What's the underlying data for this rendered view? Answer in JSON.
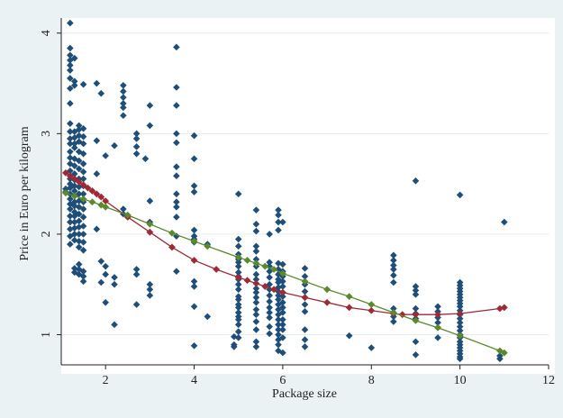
{
  "chart_data": {
    "type": "scatter",
    "title": "",
    "xlabel": "Package size",
    "ylabel": "Price in Euro per kilogram",
    "xlim": [
      1,
      12
    ],
    "ylim": [
      0.7,
      4.15
    ],
    "x_ticks": [
      2,
      4,
      6,
      8,
      10,
      12
    ],
    "y_ticks": [
      1,
      2,
      3,
      4
    ],
    "grid": true,
    "legend": "none",
    "colors": {
      "plot_background": "#ffffff",
      "outer_background": "#eaf2f3",
      "points": "#1f4e79",
      "fit_red": "#9e2a36",
      "fit_green": "#5a8a2c",
      "grid": "#e6ecec"
    },
    "series": [
      {
        "kind": "points",
        "color": "#1f4e79",
        "x": [
          1.2,
          1.2,
          1.2,
          1.2,
          1.2,
          1.2,
          1.2,
          1.2,
          1.2,
          1.2,
          1.2,
          1.2,
          1.2,
          1.2,
          1.2,
          1.2,
          1.2,
          1.2,
          1.2,
          1.2,
          1.2,
          1.2,
          1.2,
          1.2,
          1.2,
          1.2,
          1.2,
          1.2,
          1.2,
          1.2,
          1.3,
          1.3,
          1.3,
          1.3,
          1.3,
          1.3,
          1.3,
          1.3,
          1.3,
          1.3,
          1.3,
          1.3,
          1.3,
          1.3,
          1.3,
          1.3,
          1.3,
          1.3,
          1.3,
          1.3,
          1.3,
          1.3,
          1.3,
          1.3,
          1.4,
          1.4,
          1.4,
          1.4,
          1.4,
          1.4,
          1.4,
          1.4,
          1.4,
          1.4,
          1.4,
          1.4,
          1.4,
          1.4,
          1.4,
          1.4,
          1.4,
          1.4,
          1.4,
          1.4,
          1.4,
          1.5,
          1.5,
          1.5,
          1.5,
          1.5,
          1.5,
          1.5,
          1.5,
          1.5,
          1.5,
          1.5,
          1.5,
          1.5,
          1.5,
          1.5,
          1.5,
          1.5,
          1.5,
          1.5,
          1.5,
          1.1,
          1.1,
          1.8,
          1.8,
          1.8,
          1.8,
          1.9,
          1.9,
          1.9,
          2.0,
          2.0,
          2.0,
          2.0,
          2.2,
          2.2,
          2.2,
          2.2,
          2.4,
          2.4,
          2.4,
          2.4,
          2.4,
          2.4,
          2.4,
          2.4,
          2.5,
          2.7,
          2.7,
          2.7,
          2.7,
          2.7,
          2.7,
          2.7,
          2.9,
          3.0,
          3.0,
          3.0,
          3.0,
          3.0,
          3.0,
          3.0,
          3.6,
          3.6,
          3.6,
          3.6,
          3.6,
          3.6,
          3.6,
          3.6,
          3.6,
          3.6,
          3.6,
          3.6,
          3.6,
          4.0,
          4.0,
          4.0,
          4.0,
          4.0,
          4.0,
          4.0,
          4.0,
          4.0,
          4.0,
          4.0,
          4.0,
          4.3,
          4.3,
          4.9,
          4.9,
          4.9,
          5.0,
          5.0,
          5.0,
          5.0,
          5.0,
          5.0,
          5.0,
          5.0,
          5.0,
          5.0,
          5.0,
          5.0,
          5.0,
          5.0,
          5.0,
          5.0,
          5.0,
          5.0,
          5.0,
          5.0,
          5.0,
          5.0,
          5.4,
          5.4,
          5.4,
          5.4,
          5.4,
          5.4,
          5.4,
          5.4,
          5.4,
          5.4,
          5.4,
          5.4,
          5.4,
          5.4,
          5.4,
          5.4,
          5.4,
          5.4,
          5.4,
          5.7,
          5.7,
          5.7,
          5.7,
          5.7,
          5.7,
          5.7,
          5.7,
          5.7,
          5.7,
          5.7,
          5.7,
          5.7,
          5.7,
          5.9,
          5.9,
          5.9,
          5.9,
          5.9,
          5.9,
          5.9,
          5.9,
          5.9,
          5.9,
          5.9,
          5.9,
          5.9,
          5.9,
          5.9,
          5.9,
          5.9,
          5.9,
          5.9,
          5.9,
          5.9,
          5.9,
          5.9,
          6.0,
          6.0,
          6.0,
          6.0,
          6.0,
          6.0,
          6.0,
          6.0,
          6.0,
          6.0,
          6.0,
          6.0,
          6.0,
          6.0,
          6.0,
          6.0,
          6.5,
          6.5,
          6.5,
          6.5,
          6.5,
          6.5,
          6.5,
          6.5,
          6.5,
          6.5,
          7.5,
          8.0,
          8.5,
          8.5,
          8.5,
          8.5,
          8.5,
          8.5,
          8.5,
          8.5,
          8.5,
          8.5,
          9.0,
          9.0,
          9.0,
          9.0,
          9.0,
          9.0,
          9.0,
          9.0,
          9.0,
          9.5,
          9.5,
          9.5,
          9.5,
          9.5,
          9.5,
          10.0,
          10.0,
          10.0,
          10.0,
          10.0,
          10.0,
          10.0,
          10.0,
          10.0,
          10.0,
          10.0,
          10.0,
          10.0,
          10.0,
          10.0,
          10.0,
          10.0,
          10.0,
          10.0,
          10.0,
          10.0,
          10.0,
          10.0,
          10.0,
          10.0,
          10.9,
          10.9,
          11.0
        ],
        "y": [
          4.1,
          3.85,
          3.78,
          3.73,
          3.68,
          3.63,
          3.55,
          3.45,
          3.3,
          3.1,
          3.02,
          2.95,
          2.9,
          2.82,
          2.76,
          2.7,
          2.63,
          2.58,
          2.55,
          2.5,
          2.46,
          2.4,
          2.35,
          2.3,
          2.25,
          2.18,
          2.12,
          2.05,
          1.98,
          1.9,
          3.75,
          3.52,
          3.48,
          3.02,
          2.96,
          2.9,
          2.86,
          2.75,
          2.68,
          2.6,
          2.54,
          2.48,
          2.43,
          2.38,
          2.32,
          2.28,
          2.22,
          2.18,
          2.12,
          2.06,
          2.0,
          1.94,
          1.66,
          1.62,
          3.08,
          3.04,
          2.98,
          2.92,
          2.82,
          2.73,
          2.65,
          2.55,
          2.47,
          2.4,
          2.33,
          2.27,
          2.2,
          2.13,
          2.07,
          2.0,
          1.93,
          1.87,
          1.7,
          1.65,
          1.6,
          3.49,
          3.05,
          2.97,
          2.9,
          2.8,
          2.7,
          2.62,
          2.55,
          2.48,
          2.4,
          2.32,
          2.25,
          2.17,
          2.08,
          2.0,
          1.92,
          1.84,
          1.63,
          1.58,
          1.53,
          2.45,
          2.42,
          3.5,
          2.93,
          2.6,
          2.05,
          3.4,
          1.73,
          1.52,
          2.78,
          1.68,
          1.32,
          1.6,
          2.88,
          1.57,
          1.5,
          1.1,
          3.48,
          3.42,
          3.36,
          3.3,
          3.26,
          3.18,
          2.25,
          2.2,
          2.18,
          3.0,
          2.95,
          2.87,
          2.8,
          1.65,
          1.6,
          1.3,
          2.75,
          3.28,
          3.08,
          2.33,
          2.12,
          1.5,
          1.45,
          1.39,
          3.86,
          3.46,
          3.28,
          3.0,
          2.91,
          2.67,
          2.58,
          2.4,
          2.32,
          2.27,
          2.17,
          1.98,
          1.63,
          2.98,
          2.75,
          2.48,
          2.42,
          2.04,
          1.98,
          1.95,
          1.92,
          1.53,
          1.48,
          1.28,
          0.89,
          1.9,
          1.18,
          0.98,
          0.9,
          0.88,
          2.4,
          1.95,
          1.88,
          1.8,
          1.75,
          1.72,
          1.68,
          1.62,
          1.58,
          1.55,
          1.5,
          1.45,
          1.38,
          1.35,
          1.3,
          1.27,
          1.22,
          1.18,
          1.15,
          1.1,
          1.03,
          0.97,
          2.24,
          2.1,
          2.03,
          1.88,
          1.83,
          1.75,
          1.68,
          1.6,
          1.55,
          1.46,
          1.42,
          1.37,
          1.32,
          1.25,
          1.2,
          1.13,
          1.05,
          0.93,
          0.88,
          2.0,
          1.72,
          1.68,
          1.63,
          1.57,
          1.5,
          1.45,
          1.39,
          1.33,
          1.27,
          1.22,
          1.17,
          1.08,
          1.01,
          2.24,
          2.19,
          2.12,
          2.04,
          1.71,
          1.65,
          1.6,
          1.55,
          1.52,
          1.47,
          1.43,
          1.39,
          1.35,
          1.3,
          1.25,
          1.2,
          1.15,
          1.1,
          1.05,
          1.0,
          0.95,
          0.9,
          0.84,
          2.12,
          1.7,
          1.63,
          1.58,
          1.53,
          1.48,
          1.42,
          1.38,
          1.32,
          1.27,
          1.22,
          1.15,
          1.1,
          1.05,
          0.97,
          0.82,
          1.66,
          1.58,
          1.5,
          1.43,
          1.37,
          1.3,
          1.23,
          1.05,
          0.95,
          0.88,
          0.99,
          0.87,
          1.79,
          1.74,
          1.69,
          1.65,
          1.59,
          1.52,
          1.26,
          1.22,
          1.18,
          1.13,
          2.53,
          1.48,
          1.44,
          1.4,
          1.26,
          1.21,
          1.16,
          0.93,
          0.8,
          1.28,
          1.23,
          1.17,
          1.12,
          1.07,
          0.97,
          2.39,
          1.52,
          1.49,
          1.46,
          1.43,
          1.4,
          1.37,
          1.34,
          1.31,
          1.28,
          1.24,
          1.2,
          1.16,
          1.12,
          1.08,
          1.04,
          1.0,
          0.97,
          0.93,
          0.9,
          0.87,
          0.84,
          0.81,
          0.78,
          0.76,
          0.79,
          0.76,
          2.12
        ]
      },
      {
        "kind": "line",
        "color": "#9e2a36",
        "x": [
          1.1,
          1.2,
          1.3,
          1.4,
          1.5,
          1.6,
          1.7,
          1.8,
          1.9,
          2.0,
          2.5,
          3.0,
          3.5,
          4.0,
          4.5,
          5.0,
          5.2,
          5.4,
          5.6,
          5.8,
          6.0,
          6.5,
          7.0,
          7.5,
          8.0,
          8.5,
          8.7,
          9.0,
          9.5,
          10.0,
          10.9,
          11.0
        ],
        "y": [
          2.61,
          2.58,
          2.55,
          2.52,
          2.49,
          2.46,
          2.43,
          2.4,
          2.37,
          2.33,
          2.17,
          2.02,
          1.87,
          1.74,
          1.65,
          1.57,
          1.54,
          1.51,
          1.48,
          1.45,
          1.42,
          1.37,
          1.32,
          1.27,
          1.24,
          1.21,
          1.2,
          1.2,
          1.2,
          1.21,
          1.26,
          1.27
        ]
      },
      {
        "kind": "line",
        "color": "#5a8a2c",
        "x": [
          1.1,
          1.3,
          1.5,
          1.7,
          1.9,
          2.0,
          2.5,
          3.0,
          3.5,
          4.0,
          4.3,
          5.0,
          5.2,
          5.4,
          5.6,
          5.8,
          6.0,
          6.5,
          7.0,
          7.5,
          8.0,
          8.5,
          9.0,
          9.5,
          10.0,
          10.9,
          11.0
        ],
        "y": [
          2.41,
          2.38,
          2.35,
          2.32,
          2.29,
          2.27,
          2.19,
          2.1,
          2.01,
          1.93,
          1.88,
          1.77,
          1.74,
          1.71,
          1.68,
          1.65,
          1.61,
          1.53,
          1.45,
          1.38,
          1.3,
          1.22,
          1.14,
          1.07,
          0.99,
          0.84,
          0.82
        ]
      }
    ]
  }
}
